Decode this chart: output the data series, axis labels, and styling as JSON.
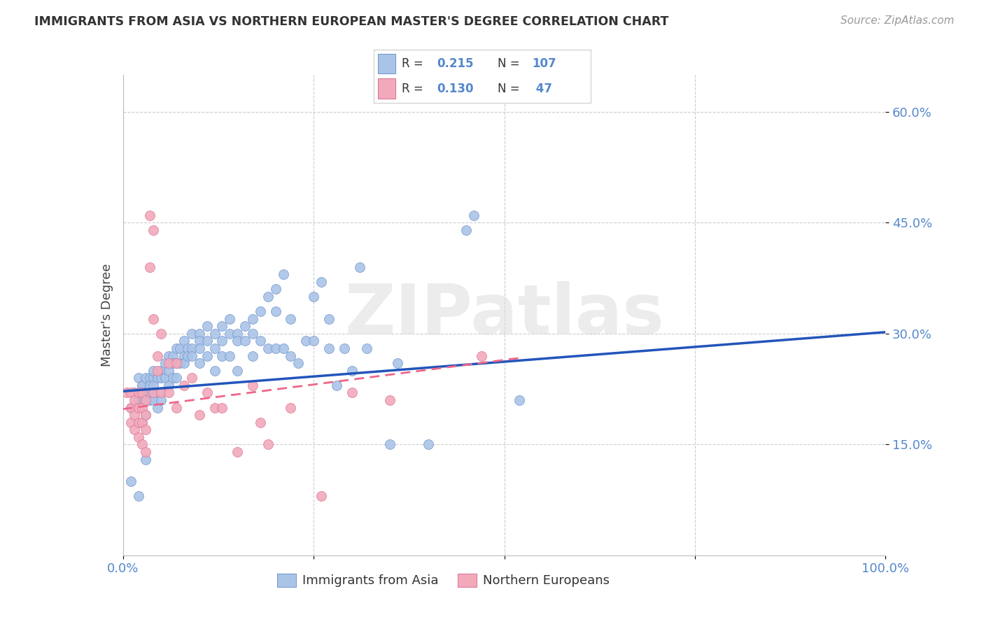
{
  "title": "IMMIGRANTS FROM ASIA VS NORTHERN EUROPEAN MASTER'S DEGREE CORRELATION CHART",
  "source": "Source: ZipAtlas.com",
  "ylabel": "Master's Degree",
  "watermark": "ZIPatlas",
  "r_asia": "0.215",
  "n_asia": "107",
  "r_north": "0.130",
  "n_north": " 47",
  "ylim": [
    0.0,
    0.65
  ],
  "xlim": [
    0.0,
    1.0
  ],
  "grid_color": "#cccccc",
  "asia_color": "#aac4e8",
  "north_color": "#f2aabb",
  "asia_edge": "#7799cc",
  "north_edge": "#dd7799",
  "line_asia_color": "#2255bb",
  "line_north_color": "#ee6688",
  "tick_color": "#5588cc",
  "background": "#ffffff",
  "asia_x": [
    0.01,
    0.01,
    0.015,
    0.02,
    0.02,
    0.02,
    0.025,
    0.025,
    0.025,
    0.025,
    0.025,
    0.03,
    0.03,
    0.03,
    0.03,
    0.03,
    0.03,
    0.035,
    0.035,
    0.035,
    0.035,
    0.04,
    0.04,
    0.04,
    0.04,
    0.04,
    0.045,
    0.045,
    0.045,
    0.05,
    0.05,
    0.05,
    0.05,
    0.055,
    0.055,
    0.06,
    0.06,
    0.06,
    0.065,
    0.065,
    0.065,
    0.07,
    0.07,
    0.07,
    0.075,
    0.075,
    0.08,
    0.08,
    0.08,
    0.085,
    0.085,
    0.09,
    0.09,
    0.09,
    0.1,
    0.1,
    0.1,
    0.1,
    0.11,
    0.11,
    0.11,
    0.12,
    0.12,
    0.12,
    0.13,
    0.13,
    0.13,
    0.14,
    0.14,
    0.14,
    0.15,
    0.15,
    0.15,
    0.16,
    0.16,
    0.17,
    0.17,
    0.17,
    0.18,
    0.18,
    0.19,
    0.19,
    0.2,
    0.2,
    0.2,
    0.21,
    0.21,
    0.22,
    0.22,
    0.23,
    0.24,
    0.25,
    0.25,
    0.26,
    0.27,
    0.27,
    0.28,
    0.29,
    0.3,
    0.31,
    0.32,
    0.35,
    0.36,
    0.4,
    0.45,
    0.46,
    0.52
  ],
  "asia_y": [
    0.1,
    0.2,
    0.22,
    0.21,
    0.24,
    0.08,
    0.22,
    0.23,
    0.21,
    0.23,
    0.18,
    0.22,
    0.24,
    0.22,
    0.21,
    0.19,
    0.13,
    0.24,
    0.23,
    0.21,
    0.22,
    0.24,
    0.23,
    0.22,
    0.21,
    0.25,
    0.24,
    0.22,
    0.2,
    0.25,
    0.24,
    0.22,
    0.21,
    0.26,
    0.24,
    0.25,
    0.27,
    0.23,
    0.27,
    0.26,
    0.24,
    0.28,
    0.26,
    0.24,
    0.28,
    0.26,
    0.27,
    0.29,
    0.26,
    0.28,
    0.27,
    0.28,
    0.3,
    0.27,
    0.3,
    0.29,
    0.28,
    0.26,
    0.31,
    0.29,
    0.27,
    0.3,
    0.28,
    0.25,
    0.31,
    0.29,
    0.27,
    0.32,
    0.3,
    0.27,
    0.3,
    0.29,
    0.25,
    0.31,
    0.29,
    0.32,
    0.3,
    0.27,
    0.33,
    0.29,
    0.35,
    0.28,
    0.36,
    0.33,
    0.28,
    0.38,
    0.28,
    0.32,
    0.27,
    0.26,
    0.29,
    0.35,
    0.29,
    0.37,
    0.32,
    0.28,
    0.23,
    0.28,
    0.25,
    0.39,
    0.28,
    0.15,
    0.26,
    0.15,
    0.44,
    0.46,
    0.21
  ],
  "north_x": [
    0.005,
    0.01,
    0.01,
    0.01,
    0.015,
    0.015,
    0.015,
    0.02,
    0.02,
    0.02,
    0.02,
    0.025,
    0.025,
    0.025,
    0.025,
    0.03,
    0.03,
    0.03,
    0.03,
    0.035,
    0.035,
    0.04,
    0.04,
    0.04,
    0.045,
    0.045,
    0.05,
    0.05,
    0.06,
    0.06,
    0.07,
    0.07,
    0.08,
    0.09,
    0.1,
    0.11,
    0.12,
    0.13,
    0.15,
    0.17,
    0.18,
    0.19,
    0.22,
    0.26,
    0.3,
    0.35,
    0.47
  ],
  "north_y": [
    0.22,
    0.22,
    0.2,
    0.18,
    0.21,
    0.19,
    0.17,
    0.22,
    0.2,
    0.18,
    0.16,
    0.22,
    0.2,
    0.18,
    0.15,
    0.21,
    0.19,
    0.17,
    0.14,
    0.46,
    0.39,
    0.44,
    0.32,
    0.22,
    0.27,
    0.25,
    0.3,
    0.22,
    0.26,
    0.22,
    0.26,
    0.2,
    0.23,
    0.24,
    0.19,
    0.22,
    0.2,
    0.2,
    0.14,
    0.23,
    0.18,
    0.15,
    0.2,
    0.08,
    0.22,
    0.21,
    0.27
  ]
}
